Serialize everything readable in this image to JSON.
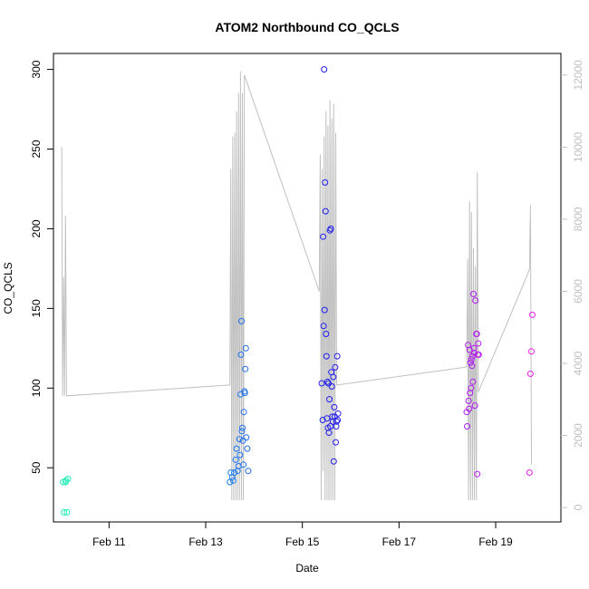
{
  "chart_data": {
    "type": "scatter",
    "title": "ATOM2 Northbound CO_QCLS",
    "xlabel": "Date",
    "ylabel": "CO_QCLS",
    "x_ticks": [
      {
        "day": 11,
        "label": "Feb 11"
      },
      {
        "day": 13,
        "label": "Feb 13"
      },
      {
        "day": 15,
        "label": "Feb 15"
      },
      {
        "day": 17,
        "label": "Feb 17"
      },
      {
        "day": 19,
        "label": "Feb 19"
      }
    ],
    "xlim": [
      9.85,
      20.35
    ],
    "ylim": [
      16,
      310
    ],
    "y_ticks": [
      50,
      100,
      150,
      200,
      250,
      300
    ],
    "y2_ticks": [
      0,
      2000,
      4000,
      6000,
      8000,
      10000,
      12000
    ],
    "y2lim": [
      -400,
      12600
    ],
    "colors": {
      "line": "#c0c0c0",
      "axis": "#000000",
      "right_axis": "#bfbfbf",
      "points_start": "#3ff0c0",
      "points_end": "#e030e0"
    },
    "series": [
      {
        "type": "points",
        "points": [
          [
            10.07,
            22
          ],
          [
            10.13,
            22
          ],
          [
            10.05,
            41
          ],
          [
            10.1,
            41
          ],
          [
            10.15,
            43
          ],
          [
            10.11,
            42
          ]
        ]
      },
      {
        "type": "points",
        "points": [
          [
            13.5,
            41
          ],
          [
            13.52,
            47
          ],
          [
            13.55,
            44
          ],
          [
            13.57,
            42
          ],
          [
            13.59,
            47
          ],
          [
            13.62,
            55
          ],
          [
            13.64,
            62
          ],
          [
            13.66,
            48
          ],
          [
            13.68,
            51
          ],
          [
            13.7,
            68
          ],
          [
            13.71,
            58
          ],
          [
            13.72,
            96
          ],
          [
            13.73,
            121
          ],
          [
            13.74,
            142
          ],
          [
            13.75,
            73
          ],
          [
            13.76,
            75
          ],
          [
            13.77,
            67
          ],
          [
            13.78,
            52
          ],
          [
            13.79,
            85
          ],
          [
            13.8,
            98
          ],
          [
            13.81,
            97
          ],
          [
            13.82,
            112
          ],
          [
            13.83,
            125
          ],
          [
            13.84,
            69
          ],
          [
            13.86,
            62
          ],
          [
            13.88,
            48
          ]
        ]
      },
      {
        "type": "points",
        "points": [
          [
            15.4,
            103
          ],
          [
            15.42,
            80
          ],
          [
            15.43,
            195
          ],
          [
            15.44,
            139
          ],
          [
            15.45,
            300
          ],
          [
            15.46,
            149
          ],
          [
            15.47,
            229
          ],
          [
            15.48,
            211
          ],
          [
            15.49,
            134
          ],
          [
            15.5,
            120
          ],
          [
            15.51,
            81
          ],
          [
            15.52,
            104
          ],
          [
            15.53,
            75
          ],
          [
            15.54,
            103
          ],
          [
            15.55,
            72
          ],
          [
            15.56,
            93
          ],
          [
            15.57,
            199
          ],
          [
            15.58,
            76
          ],
          [
            15.59,
            200
          ],
          [
            15.6,
            110
          ],
          [
            15.61,
            101
          ],
          [
            15.62,
            82
          ],
          [
            15.63,
            79
          ],
          [
            15.64,
            107
          ],
          [
            15.65,
            54
          ],
          [
            15.66,
            88
          ],
          [
            15.67,
            82
          ],
          [
            15.68,
            113
          ],
          [
            15.69,
            66
          ],
          [
            15.7,
            76
          ],
          [
            15.71,
            79
          ],
          [
            15.72,
            120
          ],
          [
            15.73,
            80
          ],
          [
            15.74,
            84
          ]
        ]
      },
      {
        "type": "points",
        "points": [
          [
            18.4,
            85
          ],
          [
            18.41,
            76
          ],
          [
            18.43,
            127
          ],
          [
            18.44,
            92
          ],
          [
            18.45,
            87
          ],
          [
            18.46,
            124
          ],
          [
            18.47,
            97
          ],
          [
            18.48,
            116
          ],
          [
            18.49,
            100
          ],
          [
            18.5,
            118
          ],
          [
            18.51,
            114
          ],
          [
            18.52,
            120
          ],
          [
            18.53,
            104
          ],
          [
            18.54,
            159
          ],
          [
            18.55,
            125
          ],
          [
            18.56,
            122
          ],
          [
            18.57,
            89
          ],
          [
            18.58,
            155
          ],
          [
            18.6,
            134
          ],
          [
            18.61,
            134
          ],
          [
            18.62,
            46
          ],
          [
            18.63,
            121
          ],
          [
            18.64,
            128
          ],
          [
            18.65,
            121
          ]
        ]
      },
      {
        "type": "points",
        "points": [
          [
            19.7,
            47
          ],
          [
            19.72,
            109
          ],
          [
            19.74,
            123
          ],
          [
            19.76,
            146
          ]
        ]
      }
    ],
    "line_y2": [
      [
        10.02,
        10000
      ],
      [
        10.04,
        3100
      ],
      [
        10.06,
        6400
      ],
      [
        10.08,
        3100
      ],
      [
        10.1,
        8100
      ],
      [
        10.12,
        3100
      ],
      [
        13.5,
        3400
      ],
      [
        13.52,
        9400
      ],
      [
        13.54,
        200
      ],
      [
        13.56,
        10300
      ],
      [
        13.58,
        200
      ],
      [
        13.6,
        10400
      ],
      [
        13.62,
        200
      ],
      [
        13.64,
        11000
      ],
      [
        13.66,
        200
      ],
      [
        13.68,
        11500
      ],
      [
        13.7,
        200
      ],
      [
        13.72,
        12100
      ],
      [
        13.74,
        200
      ],
      [
        13.76,
        11500
      ],
      [
        13.78,
        200
      ],
      [
        13.8,
        12000
      ],
      [
        15.35,
        6000
      ],
      [
        15.37,
        9800
      ],
      [
        15.39,
        200
      ],
      [
        15.41,
        9400
      ],
      [
        15.43,
        1000
      ],
      [
        15.45,
        10300
      ],
      [
        15.47,
        200
      ],
      [
        15.49,
        11000
      ],
      [
        15.51,
        200
      ],
      [
        15.53,
        10600
      ],
      [
        15.55,
        200
      ],
      [
        15.57,
        11300
      ],
      [
        15.59,
        200
      ],
      [
        15.61,
        10800
      ],
      [
        15.63,
        200
      ],
      [
        15.65,
        11200
      ],
      [
        15.67,
        200
      ],
      [
        15.69,
        10400
      ],
      [
        15.71,
        3400
      ],
      [
        18.4,
        3900
      ],
      [
        18.42,
        6900
      ],
      [
        18.44,
        200
      ],
      [
        18.46,
        8500
      ],
      [
        18.48,
        200
      ],
      [
        18.5,
        8200
      ],
      [
        18.52,
        200
      ],
      [
        18.54,
        7200
      ],
      [
        18.56,
        200
      ],
      [
        18.58,
        6700
      ],
      [
        18.6,
        200
      ],
      [
        18.62,
        9300
      ],
      [
        18.64,
        3200
      ],
      [
        19.7,
        6600
      ],
      [
        19.72,
        8400
      ],
      [
        19.74,
        1200
      ]
    ]
  }
}
